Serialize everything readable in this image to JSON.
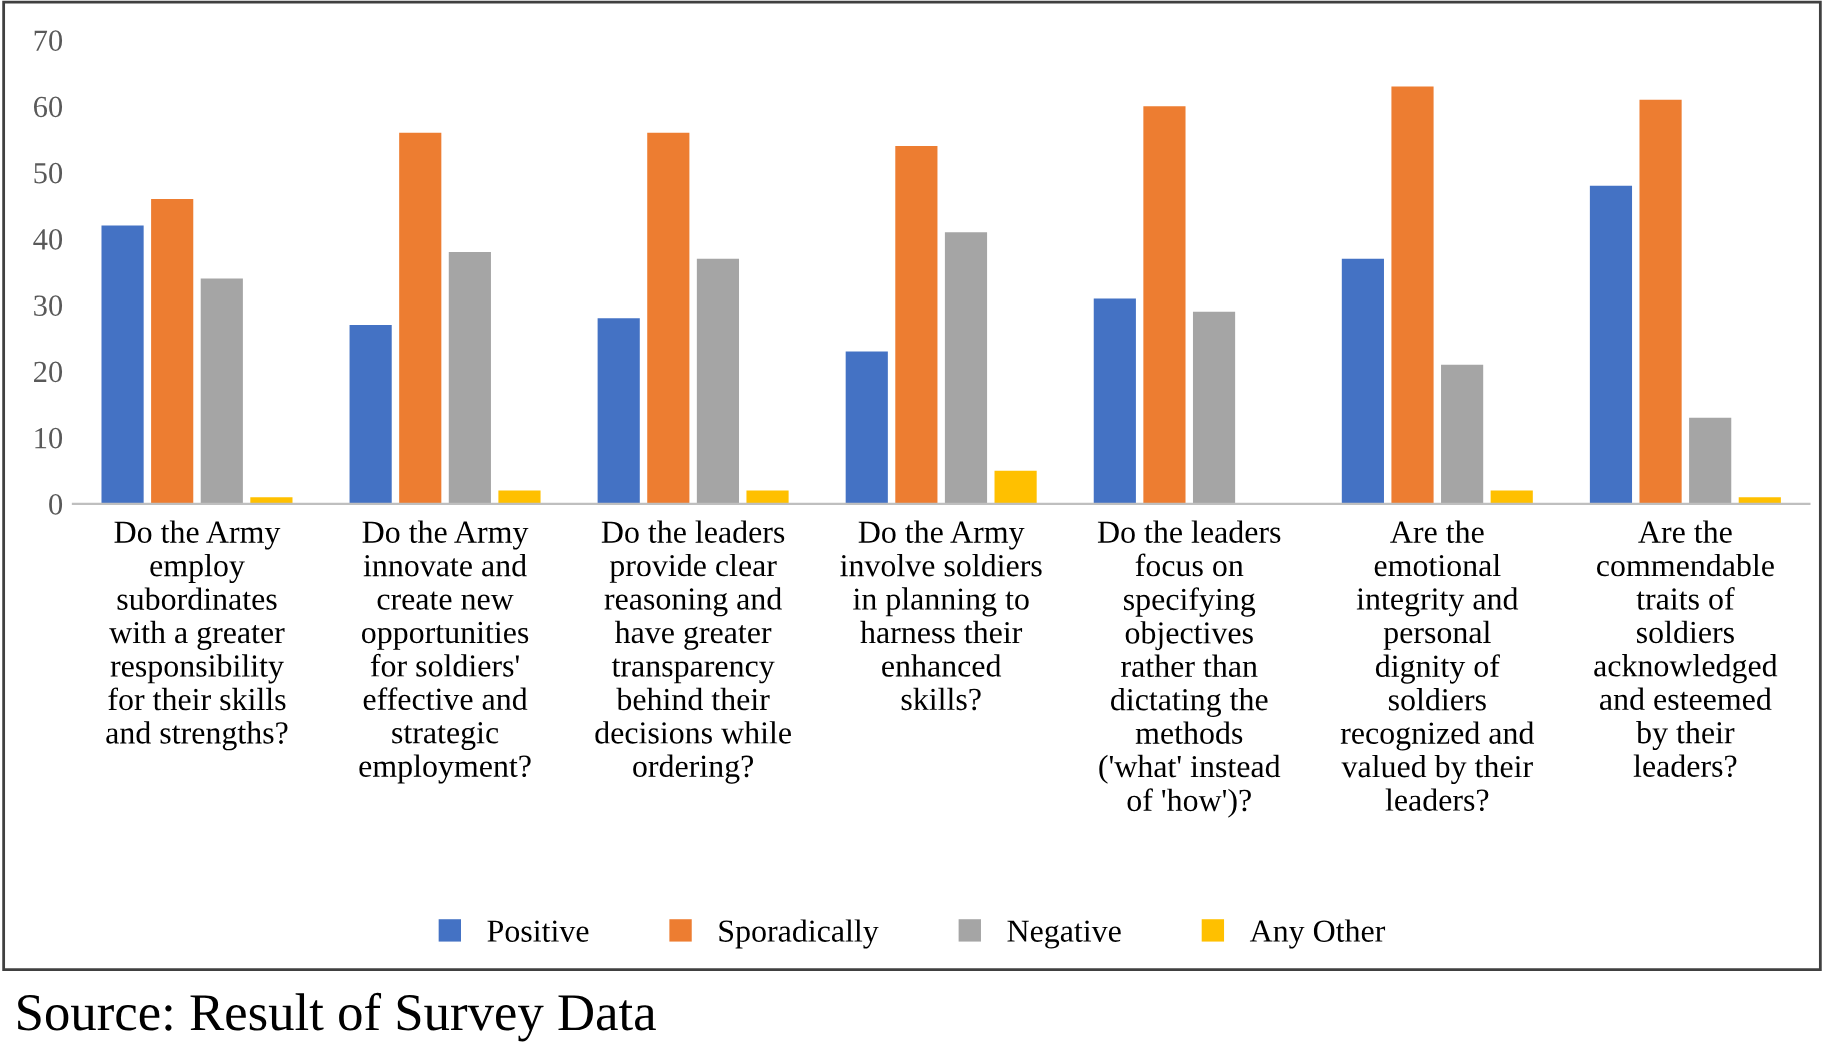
{
  "chart_data": {
    "type": "bar",
    "categories": [
      "Do the Army\nemploy\nsubordinates\nwith a greater\nresponsibility\nfor their skills\nand strengths?",
      "Do the Army\ninnovate and\ncreate new\nopportunities\nfor soldiers'\neffective and\nstrategic\nemployment?",
      "Do the leaders\nprovide clear\nreasoning and\nhave greater\ntransparency\nbehind their\ndecisions while\nordering?",
      "Do the Army\ninvolve soldiers\nin planning to\nharness their\nenhanced\nskills?",
      "Do the leaders\nfocus on\nspecifying\nobjectives\nrather than\ndictating the\nmethods\n('what' instead\nof 'how')?",
      "Are the\nemotional\nintegrity and\npersonal\ndignity of\nsoldiers\nrecognized and\nvalued by their\nleaders?",
      "Are the\ncommendable\ntraits of\nsoldiers\nacknowledged\nand esteemed\nby their\nleaders?"
    ],
    "series": [
      {
        "name": "Positive",
        "color": "#4472c4",
        "values": [
          42,
          27,
          28,
          23,
          31,
          37,
          48
        ]
      },
      {
        "name": "Sporadically",
        "color": "#ed7d31",
        "values": [
          46,
          56,
          56,
          54,
          60,
          63,
          61
        ]
      },
      {
        "name": "Negative",
        "color": "#a5a5a5",
        "values": [
          34,
          38,
          37,
          41,
          29,
          21,
          13
        ]
      },
      {
        "name": "Any Other",
        "color": "#ffc000",
        "values": [
          1,
          2,
          2,
          5,
          0,
          2,
          1
        ]
      }
    ],
    "ylim": [
      0,
      70
    ],
    "yticks": [
      0,
      10,
      20,
      30,
      40,
      50,
      60,
      70
    ],
    "grid": false,
    "legend": "bottom",
    "annotations": [
      "Source: Result of Survey Data"
    ]
  }
}
